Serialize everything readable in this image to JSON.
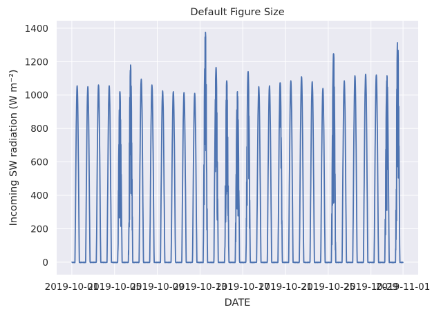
{
  "chart_data": {
    "type": "line",
    "title": "Default Figure Size",
    "xlabel": "DATE",
    "ylabel": "Incoming SW radiation (W m⁻²)",
    "ylim": [
      -75,
      1445
    ],
    "xlim": [
      "2019-09-29T14:00",
      "2019-11-02T10:00"
    ],
    "yticks": [
      0,
      200,
      400,
      600,
      800,
      1000,
      1200,
      1400
    ],
    "xticks": [
      "2019-10-01",
      "2019-10-05",
      "2019-10-09",
      "2019-10-13",
      "2019-10-17",
      "2019-10-21",
      "2019-10-25",
      "2019-10-29",
      "2019-11-01"
    ],
    "grid": true,
    "colors": {
      "line": "#4c72b0",
      "background": "#eaeaf2",
      "grid": "#ffffff"
    },
    "series": [
      {
        "x_start": "2019-10-01",
        "step_hours": 1,
        "daily_peak": [
          1055,
          1050,
          1060,
          1055,
          1020,
          1180,
          1095,
          1060,
          1025,
          1020,
          1015,
          1010,
          1385,
          1165,
          1085,
          1020,
          1140,
          1050,
          1055,
          1080,
          1085,
          1110,
          1080,
          1040,
          1255,
          1085,
          1115,
          1125,
          1120,
          1115,
          1350
        ],
        "cloudy_dips": [
          0,
          0,
          0,
          0,
          0.6,
          0.8,
          0,
          0,
          0,
          0,
          0,
          0,
          0.8,
          0.7,
          0.8,
          0.5,
          0.6,
          0,
          0,
          0.3,
          0,
          0,
          0,
          0,
          0.5,
          0,
          0,
          0,
          0,
          0.3,
          0.9
        ]
      }
    ]
  }
}
